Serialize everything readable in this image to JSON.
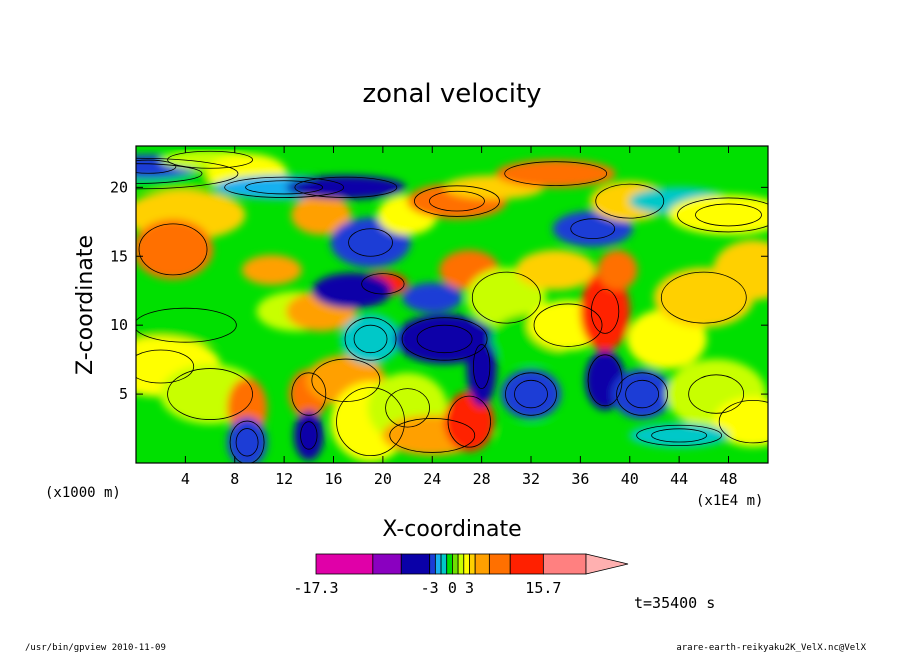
{
  "chart_data": {
    "type": "heatmap",
    "title": "zonal velocity",
    "xlabel": "X-coordinate",
    "ylabel": "Z-coordinate",
    "x_unit_left": "(x1000 m)",
    "x_unit_right": "(x1E4 m)",
    "x_ticks": [
      4,
      8,
      12,
      16,
      20,
      24,
      28,
      32,
      36,
      40,
      44,
      48
    ],
    "y_ticks": [
      5,
      10,
      15,
      20
    ],
    "xlim": [
      0,
      51.2
    ],
    "ylim": [
      0,
      23
    ],
    "colorbar": {
      "labels": [
        "-17.3",
        "-3",
        "0",
        "3",
        "15.7"
      ],
      "colors": [
        "#e000a8",
        "#8a00c0",
        "#0a00a8",
        "#1a3ed6",
        "#18b0f0",
        "#00c8c8",
        "#00e000",
        "#70e000",
        "#c8ff00",
        "#ffff00",
        "#ffd000",
        "#ffa000",
        "#ff7000",
        "#ff2000",
        "#ff8080",
        "#ffb0b0"
      ]
    },
    "time_label": "t=35400 s",
    "footer_left": "/usr/bin/gpview  2010-11-09",
    "footer_right": "arare-earth-reikyaku2K_VelX.nc@VelX"
  }
}
